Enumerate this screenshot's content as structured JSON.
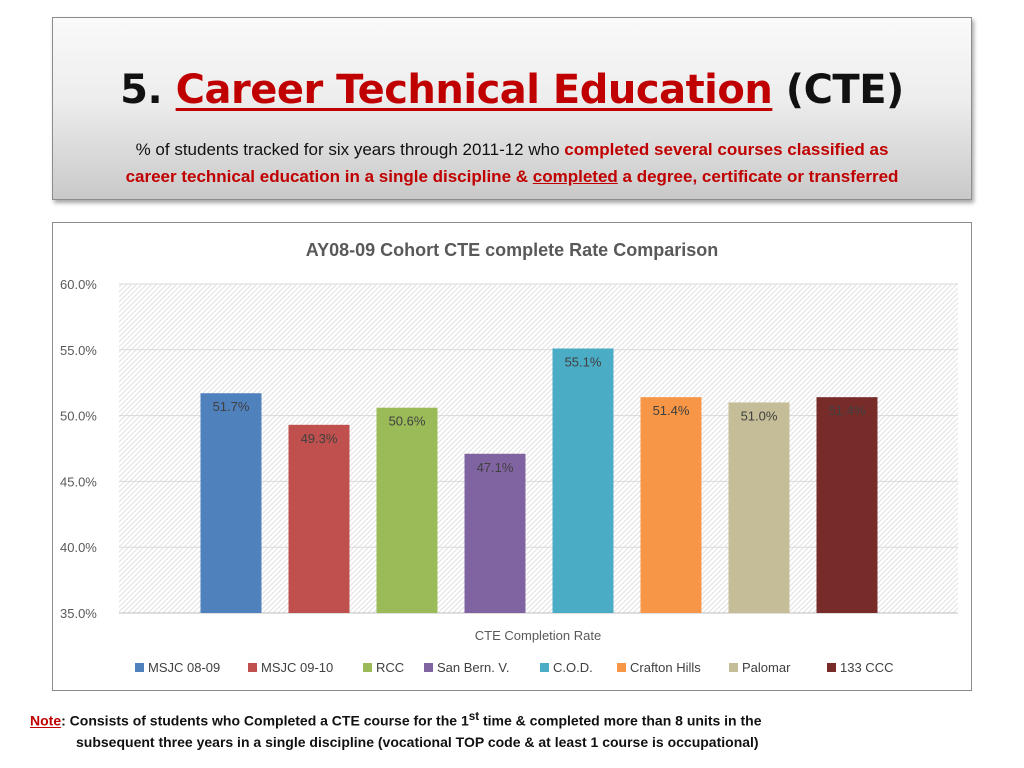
{
  "slide": {
    "title_number": "5.",
    "title_main": "Career Technical Education",
    "title_abbr": "(CTE)",
    "subtitle": {
      "line1_plain": "% of students tracked for six years through 2011-12 who",
      "line1_highlight": "completed several courses classified as",
      "line2_highlight": "career technical education in a single discipline &",
      "line2_underlined": "completed",
      "line2_tail": "a degree, certificate or transferred"
    }
  },
  "chart_data": {
    "type": "bar",
    "title": "AY08-09 Cohort CTE complete Rate Comparison",
    "xlabel": "CTE Completion Rate",
    "ylabel": "",
    "ylim": [
      35.0,
      60.0
    ],
    "yticks": [
      35.0,
      40.0,
      45.0,
      50.0,
      55.0,
      60.0
    ],
    "ytick_labels": [
      "35.0%",
      "40.0%",
      "45.0%",
      "50.0%",
      "55.0%",
      "60.0%"
    ],
    "grid": true,
    "legend": "bottom",
    "categories": [
      "CTE Completion Rate"
    ],
    "series": [
      {
        "name": "MSJC 08-09",
        "values": [
          51.7
        ],
        "label": "51.7%",
        "color": "#4f81bd"
      },
      {
        "name": "MSJC 09-10",
        "values": [
          49.3
        ],
        "label": "49.3%",
        "color": "#c0504d"
      },
      {
        "name": "RCC",
        "values": [
          50.6
        ],
        "label": "50.6%",
        "color": "#9bbb59"
      },
      {
        "name": "San Bern. V.",
        "values": [
          47.1
        ],
        "label": "47.1%",
        "color": "#8064a2"
      },
      {
        "name": "C.O.D.",
        "values": [
          55.1
        ],
        "label": "55.1%",
        "color": "#4bacc6"
      },
      {
        "name": "Crafton Hills",
        "values": [
          51.4
        ],
        "label": "51.4%",
        "color": "#f79646"
      },
      {
        "name": "Palomar",
        "values": [
          51.0
        ],
        "label": "51.0%",
        "color": "#c4bd97"
      },
      {
        "name": "133 CCC",
        "values": [
          51.4
        ],
        "label": "51.4%",
        "color": "#772c2a"
      }
    ]
  },
  "note": {
    "label": "Note",
    "line1_pre": ": Consists of students who Completed a CTE course for the 1",
    "line1_sup": "st",
    "line1_post": " time & completed more than 8 units in the",
    "line2": "subsequent three years in a single discipline (vocational TOP code & at least 1 course is occupational)"
  }
}
